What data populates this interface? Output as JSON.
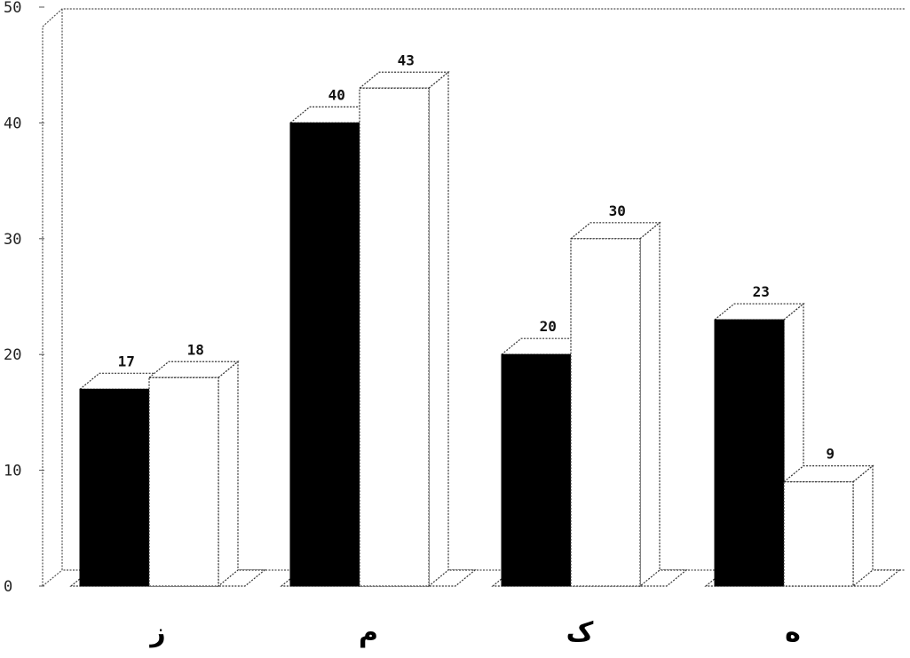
{
  "chart_data": {
    "type": "bar",
    "title": "",
    "xlabel": "",
    "ylabel": "",
    "ylim": [
      0,
      50
    ],
    "yticks": [
      0,
      10,
      20,
      30,
      40,
      50
    ],
    "ytick_labels": [
      "0",
      "10",
      "20",
      "30",
      "40",
      "50"
    ],
    "grid": false,
    "legend": "none",
    "style": "3d-bars",
    "categories": [
      "ز",
      "م",
      "ک",
      "ه"
    ],
    "series": [
      {
        "fill": "solid",
        "color": "#000000",
        "values": [
          17,
          40,
          20,
          23
        ]
      },
      {
        "fill": "hatched",
        "color": "#ffffff",
        "values": [
          18,
          43,
          30,
          9
        ]
      }
    ],
    "data_labels": [
      [
        "17",
        "40",
        "20",
        "23"
      ],
      [
        "18",
        "43",
        "30",
        "9"
      ]
    ]
  }
}
